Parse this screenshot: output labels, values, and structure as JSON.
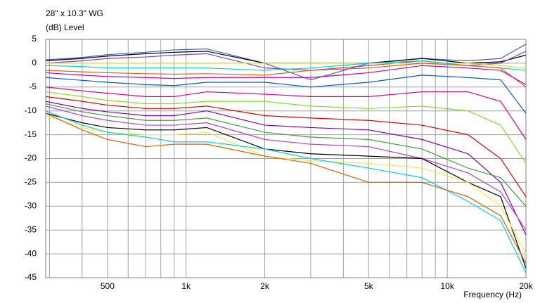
{
  "chart_data": {
    "type": "line",
    "title": "28\" x 10.3\" WG",
    "y_label": "(dB)  Level",
    "x_label": "Frequency  (Hz)",
    "log_x": true,
    "grid": true,
    "xlim": [
      290,
      20000
    ],
    "xticks": [
      {
        "value": 500,
        "label": "500"
      },
      {
        "value": 1000,
        "label": "1k"
      },
      {
        "value": 2000,
        "label": "2k"
      },
      {
        "value": 5000,
        "label": "5k"
      },
      {
        "value": 10000,
        "label": "10k"
      },
      {
        "value": 20000,
        "label": "20k"
      }
    ],
    "x_minor_grid": [
      300,
      400,
      600,
      700,
      800,
      900,
      3000,
      4000,
      6000,
      7000,
      8000,
      9000
    ],
    "ylim": [
      -45,
      5
    ],
    "yticks": [
      5,
      0,
      -5,
      -10,
      -15,
      -20,
      -25,
      -30,
      -35,
      -40,
      -45
    ],
    "x": [
      290,
      400,
      500,
      700,
      900,
      1200,
      2000,
      3000,
      5000,
      8000,
      12000,
      16000,
      20000
    ],
    "series": [
      {
        "color": "#4060c0",
        "values": [
          0.7,
          1.2,
          1.8,
          2.3,
          2.8,
          3,
          0,
          -3.5,
          0,
          1,
          0.5,
          1,
          4
        ]
      },
      {
        "color": "#000000",
        "values": [
          0.5,
          1,
          1.5,
          2,
          2.3,
          2.5,
          0,
          0,
          0,
          1,
          0,
          0.3,
          1.7
        ]
      },
      {
        "color": "#8040c0",
        "values": [
          0,
          0.5,
          1,
          1.3,
          1.7,
          2,
          -1,
          -1.5,
          -0.5,
          0.5,
          -0.5,
          0,
          2.5
        ]
      },
      {
        "color": "#e0e000",
        "values": [
          0,
          0,
          0,
          0,
          0,
          0,
          0,
          0,
          0,
          0,
          0,
          -0.5,
          -1
        ]
      },
      {
        "color": "#00d0e0",
        "values": [
          -0.5,
          -0.7,
          -1,
          -1,
          -1,
          -1,
          -1.5,
          -1,
          0,
          0.5,
          -0.5,
          -1,
          -1.5
        ]
      },
      {
        "color": "#e06000",
        "values": [
          -1.5,
          -1.8,
          -2,
          -2.2,
          -2.3,
          -2.2,
          -2.5,
          -1.5,
          -1,
          0,
          -0.5,
          -1,
          -5
        ]
      },
      {
        "color": "#c000c0",
        "values": [
          -2,
          -2.5,
          -2.8,
          -3,
          -3.2,
          -3,
          -3,
          -3,
          -2,
          -0.5,
          -1,
          -1.5,
          -4.5
        ]
      },
      {
        "color": "#0060c0",
        "values": [
          -3,
          -3.6,
          -4,
          -4.5,
          -4.7,
          -4,
          -4,
          -5,
          -4,
          -2.5,
          -3,
          -3.5,
          -10.5
        ]
      },
      {
        "color": "#e00080",
        "values": [
          -5,
          -5.8,
          -6.3,
          -7,
          -7,
          -6,
          -6.5,
          -7,
          -7,
          -6,
          -6,
          -8,
          -16
        ]
      },
      {
        "color": "#80e020",
        "values": [
          -6,
          -7,
          -7.8,
          -8.5,
          -8.5,
          -8,
          -8,
          -9,
          -9.5,
          -9,
          -10,
          -13,
          -21
        ]
      },
      {
        "color": "#e00000",
        "values": [
          -7,
          -8,
          -8.8,
          -9.5,
          -9.5,
          -9,
          -11,
          -11.5,
          -12,
          -13,
          -15,
          -20,
          -28
        ]
      },
      {
        "color": "#8000c0",
        "values": [
          -8,
          -9.5,
          -10.2,
          -11,
          -11,
          -10,
          -13,
          -13.5,
          -14,
          -16,
          -19,
          -25,
          -36
        ]
      },
      {
        "color": "#40a040",
        "values": [
          -8.5,
          -10.2,
          -11,
          -12,
          -12,
          -11.5,
          -14.5,
          -15.5,
          -16,
          -18,
          -22,
          -24,
          -30
        ]
      },
      {
        "color": "#c040c0",
        "values": [
          -9,
          -11,
          -12,
          -13,
          -13,
          -12.5,
          -16,
          -17,
          -17.5,
          -20,
          -23,
          -27,
          -35
        ]
      },
      {
        "color": "#000000",
        "values": [
          -10.5,
          -12.5,
          -13.5,
          -14,
          -14,
          -13.5,
          -18,
          -19,
          -19.5,
          -20,
          -25,
          -28,
          -43
        ]
      },
      {
        "color": "#f0f040",
        "values": [
          -11,
          -13.5,
          -14.5,
          -15,
          -15,
          -14.5,
          -19.5,
          -20.5,
          -21,
          -22,
          -25,
          -30,
          -40
        ]
      },
      {
        "color": "#00d0f0",
        "values": [
          -10,
          -13,
          -14.5,
          -15.5,
          -16.5,
          -16.5,
          -18,
          -20,
          -22,
          -24,
          -29,
          -33,
          -44
        ]
      },
      {
        "color": "#e06000",
        "values": [
          -10.5,
          -14,
          -16,
          -17.5,
          -17,
          -17,
          -19.5,
          -21,
          -25,
          -25,
          -28,
          -32,
          -42
        ]
      }
    ]
  }
}
